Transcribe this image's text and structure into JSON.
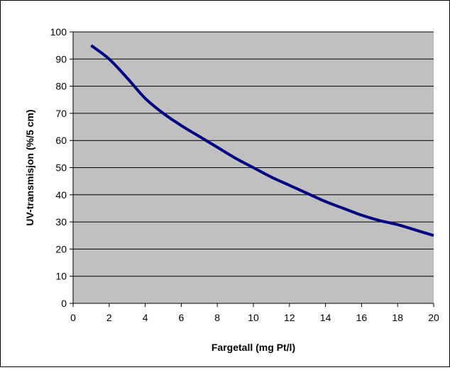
{
  "chart_data": {
    "type": "line",
    "title": "",
    "xlabel": "Fargetall (mg Pt/l)",
    "ylabel": "UV-transmisjon (%/5 cm)",
    "xlim": [
      0,
      20
    ],
    "ylim": [
      0,
      100
    ],
    "x_ticks": [
      "0",
      "2",
      "4",
      "6",
      "8",
      "10",
      "12",
      "14",
      "16",
      "18",
      "20"
    ],
    "y_ticks": [
      "0",
      "10",
      "20",
      "30",
      "40",
      "50",
      "60",
      "70",
      "80",
      "90",
      "100"
    ],
    "grid": "horizontal",
    "legend": "none",
    "series": [
      {
        "x": [
          1,
          2,
          3,
          4,
          5,
          6,
          7,
          8,
          9,
          10,
          11,
          12,
          13,
          14,
          15,
          16,
          17,
          18,
          19,
          20
        ],
        "y": [
          95,
          90,
          83,
          75.5,
          70,
          65.5,
          61.5,
          57.5,
          53.5,
          50,
          46.5,
          43.5,
          40.5,
          37.5,
          35,
          32.5,
          30.5,
          29,
          27,
          25
        ]
      }
    ],
    "colors": {
      "plot_background": "#c0c0c0",
      "line": "#000080",
      "grid": "#000000"
    }
  }
}
